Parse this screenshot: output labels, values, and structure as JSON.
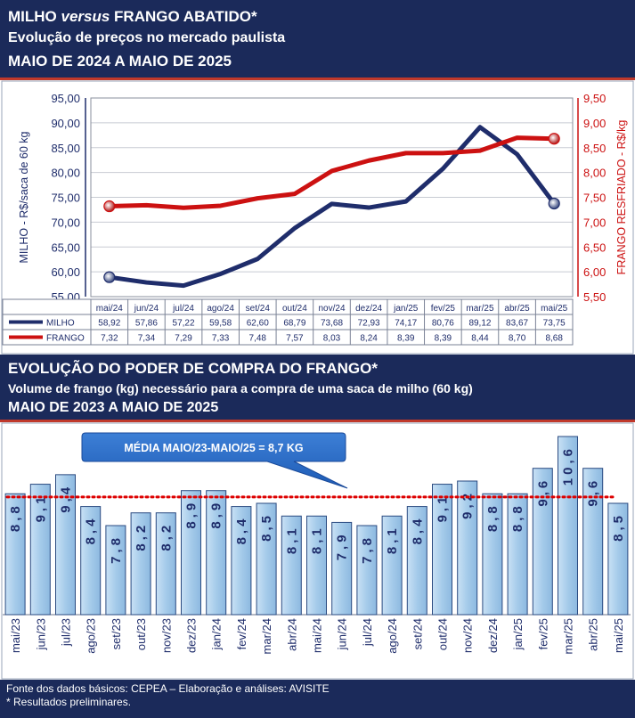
{
  "header1": {
    "line1_a": "MILHO ",
    "line1_em": "versus",
    "line1_b": " FRANGO ABATIDO*",
    "line2": "Evolução de preços no mercado paulista",
    "line3": "MAIO DE 2024 A MAIO DE 2025"
  },
  "header2": {
    "line1": "EVOLUÇÃO DO PODER DE COMPRA DO FRANGO*",
    "line2": "Volume de frango (kg) necessário para a compra de uma saca de milho (60 kg)",
    "line3": "MAIO DE 2023 A MAIO DE 2025"
  },
  "footer": {
    "line1": "Fonte dos dados básicos: CEPEA – Elaboração e análises: AVISITE",
    "line2": "* Resultados preliminares."
  },
  "colors": {
    "navy": "#1b2a5a",
    "milho": "#1f2d6b",
    "frango": "#cc1111",
    "bar_fill": "#a9cdeb",
    "bar_stroke": "#2a4a80",
    "avg_line": "#dd0000"
  },
  "chart_data": [
    {
      "type": "line",
      "categories": [
        "mai/24",
        "jun/24",
        "jul/24",
        "ago/24",
        "set/24",
        "out/24",
        "nov/24",
        "dez/24",
        "jan/25",
        "fev/25",
        "mar/25",
        "abr/25",
        "mai/25"
      ],
      "series": [
        {
          "name": "MILHO",
          "axis": "left",
          "values": [
            58.92,
            57.86,
            57.22,
            59.58,
            62.6,
            68.79,
            73.68,
            72.93,
            74.17,
            80.76,
            89.12,
            83.67,
            73.75
          ],
          "labels": [
            "58,92",
            "57,86",
            "57,22",
            "59,58",
            "62,60",
            "68,79",
            "73,68",
            "72,93",
            "74,17",
            "80,76",
            "89,12",
            "83,67",
            "73,75"
          ]
        },
        {
          "name": "FRANGO",
          "axis": "right",
          "values": [
            7.32,
            7.34,
            7.29,
            7.33,
            7.48,
            7.57,
            8.03,
            8.24,
            8.39,
            8.39,
            8.44,
            8.7,
            8.68
          ],
          "labels": [
            "7,32",
            "7,34",
            "7,29",
            "7,33",
            "7,48",
            "7,57",
            "8,03",
            "8,24",
            "8,39",
            "8,39",
            "8,44",
            "8,70",
            "8,68"
          ]
        }
      ],
      "ylabel": "MILHO - R$/saca de 60 kg",
      "y2label": "FRANGO RESFRIADO - R$/kg",
      "ylim": [
        55,
        95
      ],
      "y2lim": [
        5.5,
        9.5
      ],
      "yticks": [
        "55,00",
        "60,00",
        "65,00",
        "70,00",
        "75,00",
        "80,00",
        "85,00",
        "90,00",
        "95,00"
      ],
      "y2ticks": [
        "5,50",
        "6,00",
        "6,50",
        "7,00",
        "7,50",
        "8,00",
        "8,50",
        "9,00",
        "9,50"
      ],
      "grid": true
    },
    {
      "type": "bar",
      "categories": [
        "mai/23",
        "jun/23",
        "jul/23",
        "ago/23",
        "set/23",
        "out/23",
        "nov/23",
        "dez/23",
        "jan/24",
        "fev/24",
        "mar/24",
        "abr/24",
        "mai/24",
        "jun/24",
        "jul/24",
        "ago/24",
        "set/24",
        "out/24",
        "nov/24",
        "dez/24",
        "jan/25",
        "fev/25",
        "mar/25",
        "abr/25",
        "mai/25"
      ],
      "values": [
        8.8,
        9.1,
        9.4,
        8.4,
        7.8,
        8.2,
        8.2,
        8.9,
        8.9,
        8.4,
        8.5,
        8.1,
        8.1,
        7.9,
        7.8,
        8.1,
        8.4,
        9.1,
        9.2,
        8.8,
        8.8,
        9.6,
        10.6,
        9.6,
        8.5
      ],
      "labels": [
        "8,8",
        "9,1",
        "9,4",
        "8,4",
        "7,8",
        "8,2",
        "8,2",
        "8,9",
        "8,9",
        "8,4",
        "8,5",
        "8,1",
        "8,1",
        "7,9",
        "7,8",
        "8,1",
        "8,4",
        "9,1",
        "9,2",
        "8,8",
        "8,8",
        "9,6",
        "10,6",
        "9,6",
        "8,5"
      ],
      "average": 8.7,
      "annotation": "MÉDIA MAIO/23-MAIO/25 = 8,7 KG"
    }
  ]
}
